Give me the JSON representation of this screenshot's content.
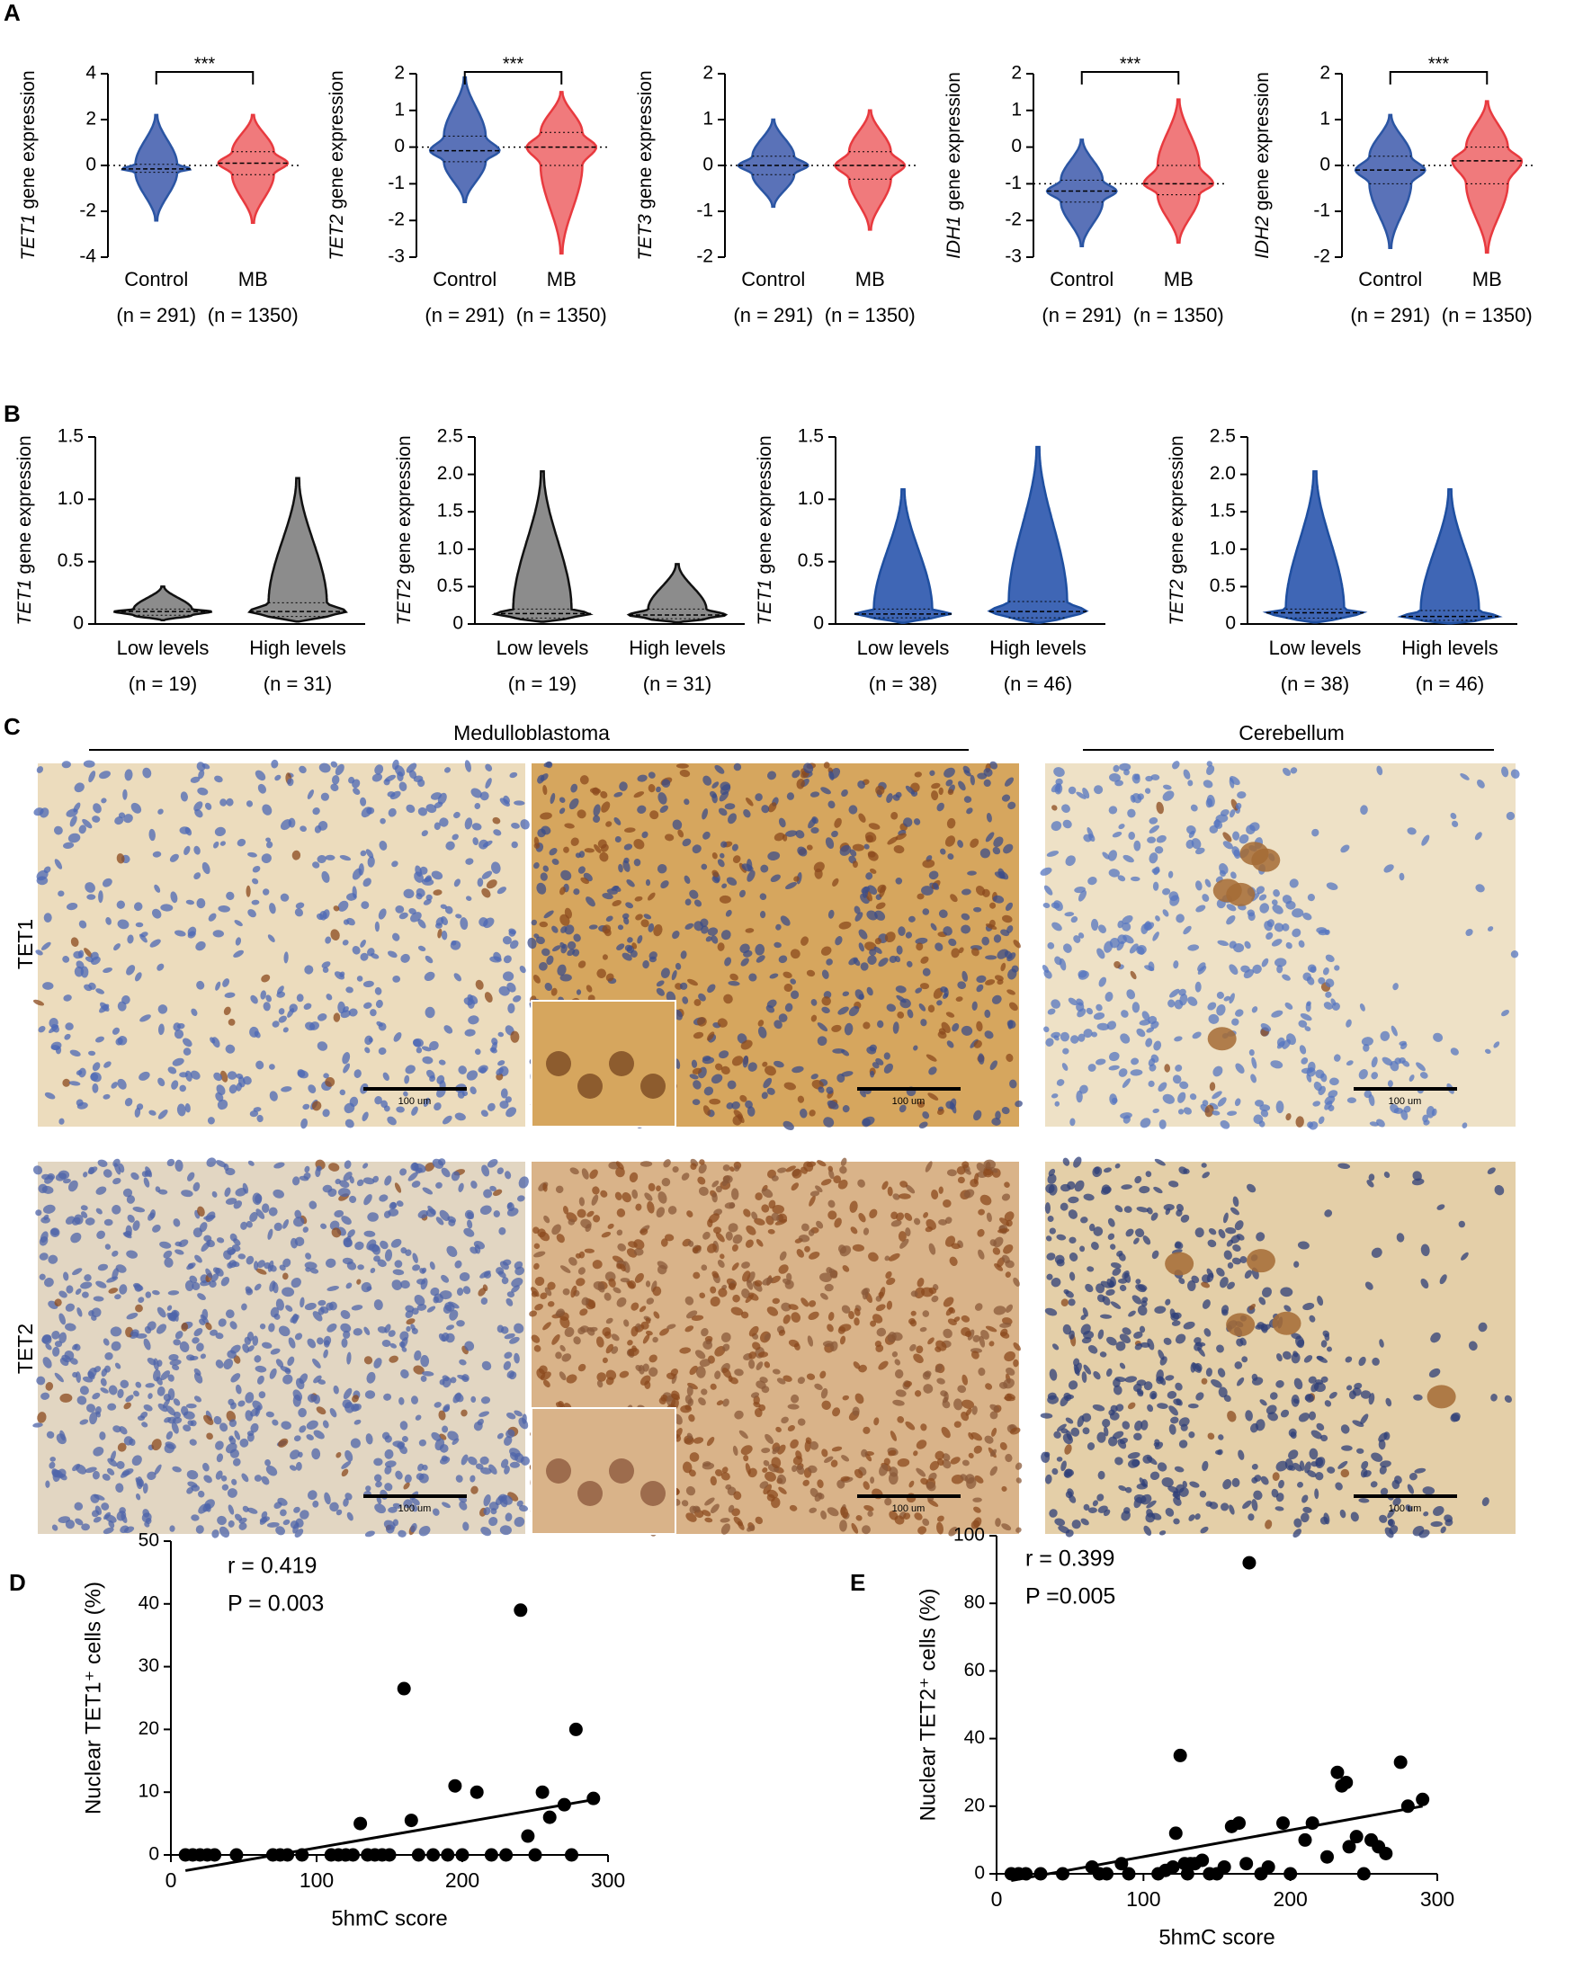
{
  "panel_labels": [
    "A",
    "B",
    "C",
    "D",
    "E"
  ],
  "micrographs": {
    "header": [
      "Medulloblastoma",
      "Cerebellum"
    ],
    "rows": [
      "TET1",
      "TET2"
    ],
    "scale_bars": [
      "100 um",
      "100 um",
      "100 um",
      "100 um",
      "100 um",
      "100 um"
    ]
  },
  "chart_data": [
    {
      "type": "violin",
      "ylabel_gene": "TET1",
      "ylabel": "gene expression",
      "ylim": [
        -4,
        4
      ],
      "yticks": [
        -4,
        -2,
        0,
        2,
        4
      ],
      "refline": 0,
      "significance": "***",
      "categories": [
        "Control",
        "MB"
      ],
      "n_labels": [
        "(n = 291)",
        "(n = 1350)"
      ],
      "colors": [
        "#2b55a3",
        "#e83a3f"
      ],
      "fill_colors": [
        "#5a72b8",
        "#f07a7c"
      ],
      "groups": [
        {
          "min": -2.4,
          "q1": -0.3,
          "median": -0.15,
          "q3": 0.05,
          "max": 2.2
        },
        {
          "min": -2.5,
          "q1": -0.4,
          "median": 0.1,
          "q3": 0.6,
          "max": 2.2
        }
      ]
    },
    {
      "type": "violin",
      "ylabel_gene": "TET2",
      "ylabel": "gene expression",
      "ylim": [
        -3,
        2
      ],
      "yticks": [
        -3,
        -2,
        -1,
        0,
        1,
        2
      ],
      "refline": 0,
      "significance": "***",
      "categories": [
        "Control",
        "MB"
      ],
      "n_labels": [
        "(n = 291)",
        "(n = 1350)"
      ],
      "colors": [
        "#2b55a3",
        "#e83a3f"
      ],
      "fill_colors": [
        "#5a72b8",
        "#f07a7c"
      ],
      "groups": [
        {
          "min": -1.5,
          "q1": -0.4,
          "median": -0.1,
          "q3": 0.3,
          "max": 1.9
        },
        {
          "min": -2.9,
          "q1": -0.5,
          "median": 0,
          "q3": 0.4,
          "max": 1.5
        }
      ]
    },
    {
      "type": "violin",
      "ylabel_gene": "TET3",
      "ylabel": "gene expression",
      "ylim": [
        -2,
        2
      ],
      "yticks": [
        -2,
        -1,
        0,
        1,
        2
      ],
      "refline": 0,
      "categories": [
        "Control",
        "MB"
      ],
      "n_labels": [
        "(n = 291)",
        "(n = 1350)"
      ],
      "colors": [
        "#2b55a3",
        "#e83a3f"
      ],
      "fill_colors": [
        "#5a72b8",
        "#f07a7c"
      ],
      "groups": [
        {
          "min": -0.9,
          "q1": -0.2,
          "median": 0,
          "q3": 0.2,
          "max": 1.0
        },
        {
          "min": -1.4,
          "q1": -0.3,
          "median": 0,
          "q3": 0.3,
          "max": 1.2
        }
      ]
    },
    {
      "type": "violin",
      "ylabel_gene": "IDH1",
      "ylabel": "gene expression",
      "ylim": [
        -3,
        2
      ],
      "yticks": [
        -3,
        -2,
        -1,
        0,
        1,
        2
      ],
      "refline": -1,
      "significance": "***",
      "categories": [
        "Control",
        "MB"
      ],
      "n_labels": [
        "(n = 291)",
        "(n = 1350)"
      ],
      "colors": [
        "#2b55a3",
        "#e83a3f"
      ],
      "fill_colors": [
        "#5a72b8",
        "#f07a7c"
      ],
      "groups": [
        {
          "min": -2.7,
          "q1": -1.5,
          "median": -1.2,
          "q3": -0.9,
          "max": 0.2
        },
        {
          "min": -2.6,
          "q1": -1.3,
          "median": -1.0,
          "q3": -0.5,
          "max": 1.3
        }
      ]
    },
    {
      "type": "violin",
      "ylabel_gene": "IDH2",
      "ylabel": "gene expression",
      "ylim": [
        -2,
        2
      ],
      "yticks": [
        -2,
        -1,
        0,
        1,
        2
      ],
      "refline": 0,
      "significance": "***",
      "categories": [
        "Control",
        "MB"
      ],
      "n_labels": [
        "(n = 291)",
        "(n = 1350)"
      ],
      "colors": [
        "#2b55a3",
        "#e83a3f"
      ],
      "fill_colors": [
        "#5a72b8",
        "#f07a7c"
      ],
      "groups": [
        {
          "min": -1.8,
          "q1": -0.4,
          "median": -0.1,
          "q3": 0.2,
          "max": 1.1
        },
        {
          "min": -1.9,
          "q1": -0.4,
          "median": 0.1,
          "q3": 0.4,
          "max": 1.4
        }
      ]
    },
    {
      "type": "violin",
      "ylabel_gene": "TET1",
      "ylabel": "gene expression",
      "ylim": [
        0,
        1.5
      ],
      "yticks": [
        0,
        0.5,
        {
          "value": 1,
          "label": "1.0"
        },
        1.5
      ],
      "x_axis": true,
      "categories": [
        "Low levels",
        "High levels"
      ],
      "n_labels": [
        "(n = 19)",
        "(n = 31)"
      ],
      "colors": [
        "#111111",
        "#111111"
      ],
      "fill_colors": [
        "#8c8c8c",
        "#8c8c8c"
      ],
      "groups": [
        {
          "min": 0.03,
          "q1": 0.07,
          "median": 0.1,
          "q3": 0.12,
          "max": 0.3
        },
        {
          "min": 0.02,
          "q1": 0.06,
          "median": 0.1,
          "q3": 0.17,
          "max": 1.17
        }
      ]
    },
    {
      "type": "violin",
      "ylabel_gene": "TET2",
      "ylabel": "gene expression",
      "ylim": [
        0,
        2.5
      ],
      "yticks": [
        0,
        0.5,
        {
          "value": 1,
          "label": "1.0"
        },
        1.5,
        {
          "value": 2,
          "label": "2.0"
        },
        2.5
      ],
      "x_axis": true,
      "categories": [
        "Low levels",
        "High levels"
      ],
      "n_labels": [
        "(n = 19)",
        "(n = 31)"
      ],
      "colors": [
        "#111111",
        "#111111"
      ],
      "fill_colors": [
        "#8c8c8c",
        "#8c8c8c"
      ],
      "groups": [
        {
          "min": 0.03,
          "q1": 0.08,
          "median": 0.14,
          "q3": 0.2,
          "max": 2.04
        },
        {
          "min": 0.02,
          "q1": 0.07,
          "median": 0.12,
          "q3": 0.2,
          "max": 0.8
        }
      ]
    },
    {
      "type": "violin",
      "ylabel_gene": "TET1",
      "ylabel": "gene expression",
      "ylim": [
        0,
        1.5
      ],
      "yticks": [
        0,
        0.5,
        {
          "value": 1,
          "label": "1.0"
        },
        1.5
      ],
      "x_axis": true,
      "categories": [
        "Low levels",
        "High levels"
      ],
      "n_labels": [
        "(n = 38)",
        "(n = 46)"
      ],
      "colors": [
        "#1f4fa0",
        "#1f4fa0"
      ],
      "fill_colors": [
        "#3f66b5",
        "#3f66b5"
      ],
      "groups": [
        {
          "min": 0.01,
          "q1": 0.05,
          "median": 0.08,
          "q3": 0.12,
          "max": 1.08
        },
        {
          "min": 0.01,
          "q1": 0.05,
          "median": 0.1,
          "q3": 0.18,
          "max": 1.42
        }
      ]
    },
    {
      "type": "violin",
      "ylabel_gene": "TET2",
      "ylabel": "gene expression",
      "ylim": [
        0,
        2.5
      ],
      "yticks": [
        0,
        0.5,
        {
          "value": 1,
          "label": "1.0"
        },
        1.5,
        {
          "value": 2,
          "label": "2.0"
        },
        2.5
      ],
      "x_axis": true,
      "categories": [
        "Low levels",
        "High levels"
      ],
      "n_labels": [
        "(n = 38)",
        "(n = 46)"
      ],
      "colors": [
        "#1f4fa0",
        "#1f4fa0"
      ],
      "fill_colors": [
        "#3f66b5",
        "#3f66b5"
      ],
      "groups": [
        {
          "min": 0.02,
          "q1": 0.08,
          "median": 0.15,
          "q3": 0.2,
          "max": 2.04
        },
        {
          "min": 0.01,
          "q1": 0.05,
          "median": 0.1,
          "q3": 0.18,
          "max": 1.8
        }
      ]
    },
    {
      "type": "scatter",
      "xlabel": "5hmC score",
      "ylabel": "Nuclear TET1⁺ cells (%)",
      "annotations": [
        "r = 0.419",
        "P = 0.003"
      ],
      "xlim": [
        0,
        300
      ],
      "xticks": [
        0,
        100,
        200,
        300
      ],
      "ylim": [
        0,
        50
      ],
      "yticks": [
        0,
        10,
        20,
        30,
        40,
        50
      ],
      "refline": 0,
      "color": "#000000",
      "x": [
        10,
        15,
        20,
        25,
        30,
        45,
        70,
        75,
        80,
        90,
        110,
        115,
        120,
        125,
        135,
        140,
        145,
        150,
        170,
        180,
        190,
        200,
        220,
        230,
        250,
        275,
        130,
        160,
        165,
        195,
        210,
        240,
        245,
        255,
        260,
        270,
        278,
        290
      ],
      "values": [
        0,
        0,
        0,
        0,
        0,
        0,
        0,
        0,
        0,
        0,
        0,
        0,
        0,
        0,
        0,
        0,
        0,
        0,
        0,
        0,
        0,
        0,
        0,
        0,
        0,
        0,
        5,
        26.5,
        5.5,
        11,
        10,
        39,
        3,
        10,
        6,
        8,
        20,
        9
      ],
      "fit": {
        "x": [
          10,
          290
        ],
        "y": [
          -2.5,
          8.8
        ]
      }
    },
    {
      "type": "scatter",
      "xlabel": "5hmC score",
      "ylabel": "Nuclear TET2⁺ cells (%)",
      "annotations": [
        "r = 0.399",
        "P =0.005"
      ],
      "xlim": [
        0,
        300
      ],
      "xticks": [
        0,
        100,
        200,
        300
      ],
      "ylim": [
        0,
        100
      ],
      "yticks": [
        0,
        20,
        40,
        60,
        80,
        100
      ],
      "refline": 0,
      "color": "#000000",
      "x": [
        10,
        15,
        20,
        30,
        45,
        65,
        70,
        75,
        85,
        90,
        110,
        115,
        120,
        122,
        125,
        128,
        130,
        132,
        135,
        140,
        145,
        150,
        155,
        160,
        165,
        170,
        172,
        180,
        185,
        195,
        200,
        210,
        215,
        225,
        232,
        235,
        238,
        240,
        245,
        250,
        255,
        260,
        265,
        275,
        280,
        290
      ],
      "values": [
        0,
        0,
        0,
        0,
        0,
        2,
        0,
        0,
        3,
        0,
        0,
        1,
        2,
        12,
        35,
        3,
        0,
        3,
        3,
        4,
        0,
        0,
        2,
        14,
        15,
        3,
        92,
        0,
        2,
        15,
        0,
        10,
        15,
        5,
        30,
        26,
        27,
        8,
        11,
        0,
        10,
        8,
        6,
        33,
        20,
        22
      ],
      "fit": {
        "x": [
          10,
          290
        ],
        "y": [
          -2,
          20
        ]
      }
    }
  ]
}
